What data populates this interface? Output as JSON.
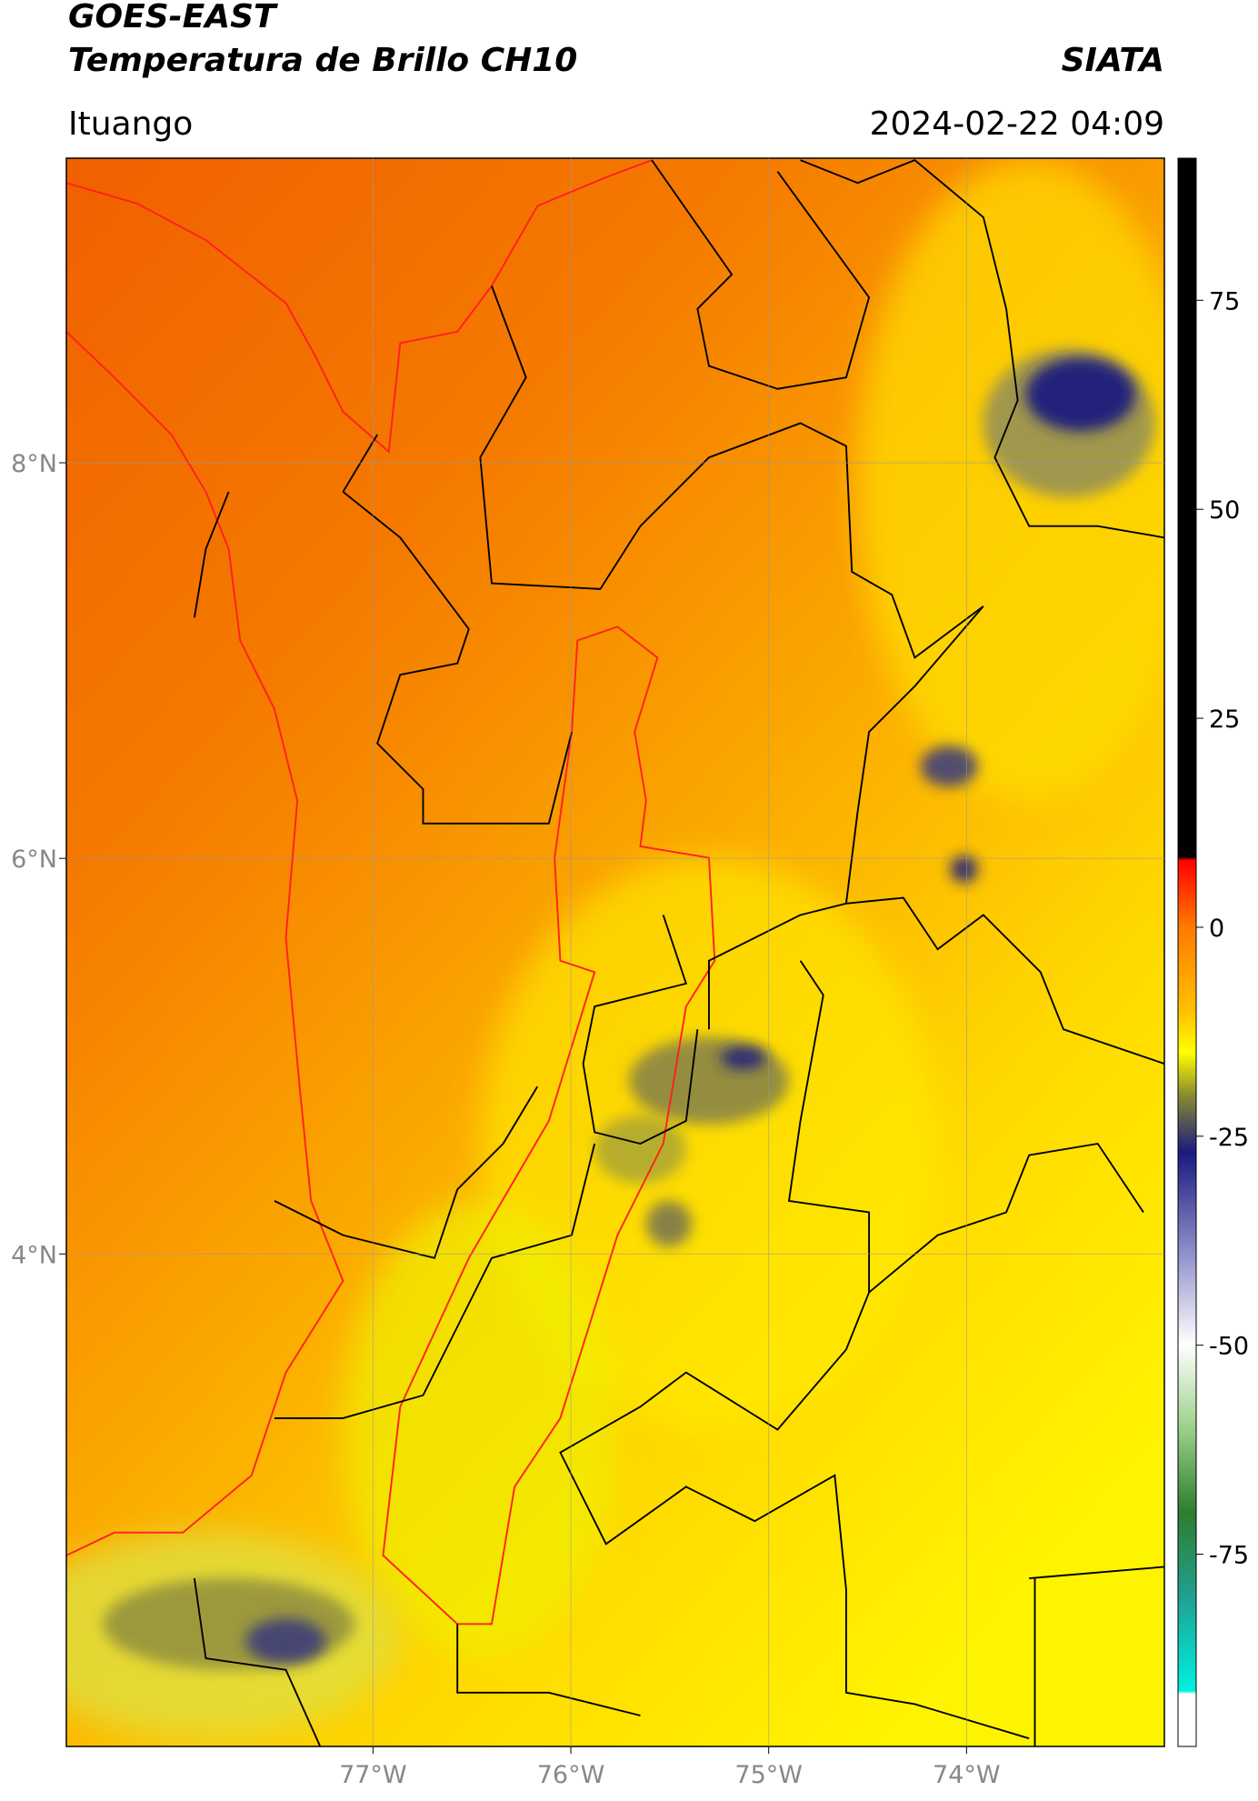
{
  "header": {
    "title": "GOES-EAST",
    "subtitle": "Temperatura de Brillo CH10",
    "source": "SIATA",
    "location": "Ituango",
    "datetime": "2024-02-22 04:09"
  },
  "map": {
    "xlim": [
      -78.55,
      -73.0
    ],
    "ylim": [
      1.51,
      9.54
    ],
    "xticks": [
      {
        "value": -77,
        "label": "77°W"
      },
      {
        "value": -76,
        "label": "76°W"
      },
      {
        "value": -75,
        "label": "75°W"
      },
      {
        "value": -74,
        "label": "74°W"
      }
    ],
    "yticks": [
      {
        "value": 8,
        "label": "8°N"
      },
      {
        "value": 6,
        "label": "6°N"
      },
      {
        "value": 4,
        "label": "4°N"
      }
    ],
    "grid": true
  },
  "colorbar": {
    "lim": [
      -98,
      92
    ],
    "ticks": [
      75,
      50,
      25,
      0,
      -25,
      -50,
      -75
    ]
  }
}
